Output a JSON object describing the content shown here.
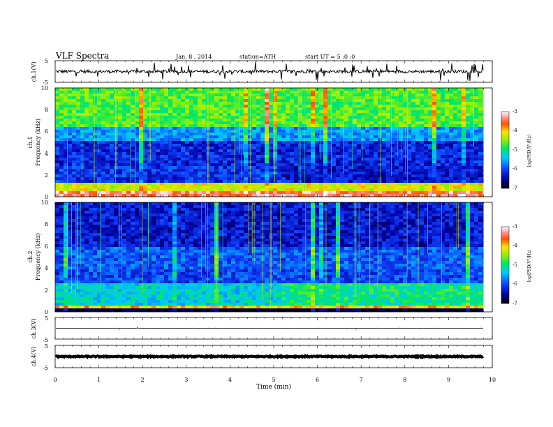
{
  "header": {
    "title": "VLF Spectra",
    "date": "Jan. 8 , 2014",
    "station": "station=ATH",
    "start": "start UT = 5 :0 :0"
  },
  "chart_data": [
    {
      "type": "line",
      "panel": "ch1-waveform",
      "ylabel": "ch.1(V)",
      "ylim": [
        -5,
        5
      ],
      "y_ticks": [
        "5",
        "-5"
      ],
      "xlim": [
        0,
        10
      ],
      "baseline": 0,
      "trace_min_x": 9.8
    },
    {
      "type": "heatmap",
      "panel": "ch1-spectrogram",
      "ylabel_top": "ch.1",
      "ylabel": "Frequency (kHz)",
      "ylim": [
        0,
        10
      ],
      "y_ticks": [
        "0",
        "2",
        "4",
        "6",
        "8",
        "10"
      ],
      "xlim": [
        0,
        10
      ],
      "data_x_max": 9.8,
      "transition_x": 5.1,
      "colorbar": {
        "label": "log(PSD(V²/Hz)",
        "range": [
          -7,
          -3
        ],
        "ticks": [
          "-3",
          "-4",
          "-5",
          "-6",
          "-7"
        ]
      }
    },
    {
      "type": "heatmap",
      "panel": "ch2-spectrogram",
      "ylabel_top": "ch.2",
      "ylabel": "Frequency (kHz)",
      "ylim": [
        0,
        10
      ],
      "y_ticks": [
        "0",
        "2",
        "4",
        "6",
        "8",
        "10"
      ],
      "xlim": [
        0,
        10
      ],
      "data_x_max": 9.8,
      "transition_x": 5.1,
      "colorbar": {
        "label": "log(PSD(V²/Hz)",
        "range": [
          -7,
          -3
        ],
        "ticks": [
          "-3",
          "-4",
          "-5",
          "-6",
          "-7"
        ]
      }
    },
    {
      "type": "line",
      "panel": "ch3-waveform",
      "ylabel": "ch.3(V)",
      "ylim": [
        -5,
        5
      ],
      "y_ticks": [
        "5",
        "-5"
      ],
      "xlim": [
        0,
        10
      ],
      "baseline": 0
    },
    {
      "type": "line",
      "panel": "ch4-waveform",
      "ylabel": "ch.4(V)",
      "ylim": [
        -5,
        5
      ],
      "y_ticks": [
        "5",
        "-5"
      ],
      "xlim": [
        0,
        10
      ],
      "baseline": 0,
      "xlabel": "Time (min)",
      "x_ticks": [
        "0",
        "1",
        "2",
        "3",
        "4",
        "5",
        "6",
        "7",
        "8",
        "9",
        "10"
      ]
    }
  ]
}
